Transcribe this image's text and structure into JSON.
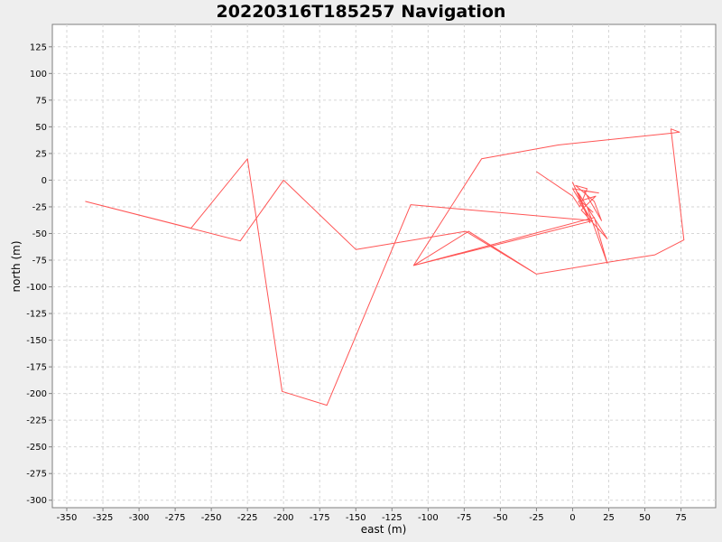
{
  "chart_data": {
    "type": "line",
    "title": "20220316T185257 Navigation",
    "xlabel": "east (m)",
    "ylabel": "north (m)",
    "xlim": [
      -360,
      99
    ],
    "ylim": [
      -307,
      146
    ],
    "xticks": [
      -350,
      -325,
      -300,
      -275,
      -250,
      -225,
      -200,
      -175,
      -150,
      -125,
      -100,
      -75,
      -50,
      -25,
      0,
      25,
      50,
      75
    ],
    "yticks": [
      125,
      100,
      75,
      50,
      25,
      0,
      -25,
      -50,
      -75,
      -100,
      -125,
      -150,
      -175,
      -200,
      -225,
      -250,
      -275,
      -300
    ],
    "grid": true,
    "line_color": "#ff5555",
    "series": [
      {
        "x": [
          -25,
          0,
          5,
          10,
          2,
          15,
          20,
          8,
          18,
          0,
          12,
          4,
          16,
          6,
          24,
          4,
          12,
          0,
          6,
          14,
          10,
          24,
          15,
          -110,
          -72,
          -25,
          24,
          57,
          77,
          68,
          74,
          68,
          -10,
          -63,
          -110,
          14,
          -112,
          -170,
          -201,
          -225,
          -264,
          -337,
          -230,
          -200,
          -150,
          -74,
          -25,
          24
        ],
        "y": [
          8,
          -15,
          -25,
          -8,
          -5,
          -20,
          -38,
          -10,
          -12,
          -8,
          -35,
          -20,
          -15,
          -28,
          -55,
          -12,
          -40,
          -2,
          -20,
          -30,
          -25,
          -78,
          -35,
          -80,
          -48,
          -88,
          -77,
          -70,
          -56,
          48,
          45,
          44,
          33,
          20,
          -80,
          -38,
          -23,
          -211,
          -198,
          20,
          -45,
          -20,
          -57,
          0,
          -65,
          -48,
          -88,
          -77
        ]
      }
    ]
  }
}
